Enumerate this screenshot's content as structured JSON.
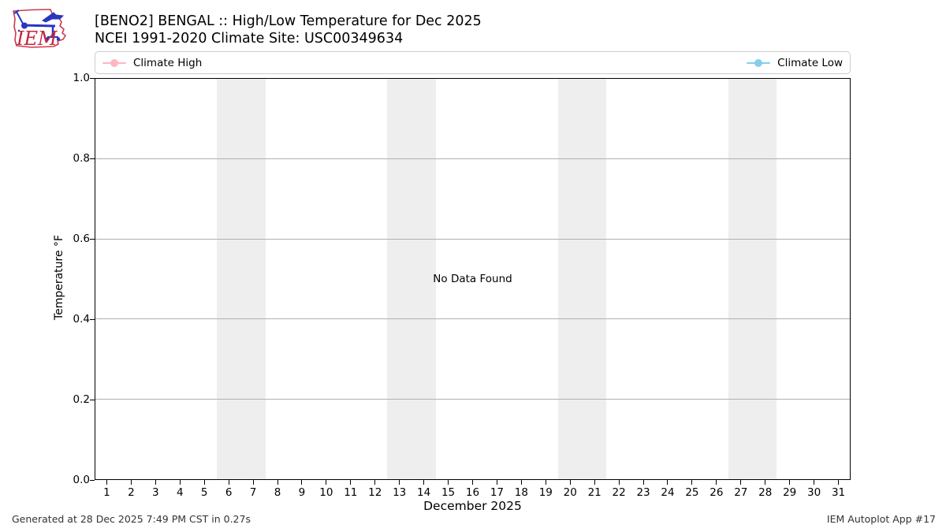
{
  "logo": {
    "text": "IEM"
  },
  "header": {
    "title": "[BENO2] BENGAL :: High/Low Temperature for Dec 2025",
    "subtitle": "NCEI 1991-2020 Climate Site: USC00349634"
  },
  "legend": {
    "high": {
      "label": "Climate High",
      "color": "#ffb6c1"
    },
    "low": {
      "label": "Climate Low",
      "color": "#87ceeb"
    }
  },
  "chart_data": {
    "type": "line",
    "title": "[BENO2] BENGAL :: High/Low Temperature for Dec 2025",
    "subtitle": "NCEI 1991-2020 Climate Site: USC00349634",
    "xlabel": "December 2025",
    "ylabel": "Temperature °F",
    "no_data_text": "No Data Found",
    "xlim": [
      0.5,
      31.5
    ],
    "ylim": [
      0.0,
      1.0
    ],
    "xticks": [
      1,
      2,
      3,
      4,
      5,
      6,
      7,
      8,
      9,
      10,
      11,
      12,
      13,
      14,
      15,
      16,
      17,
      18,
      19,
      20,
      21,
      22,
      23,
      24,
      25,
      26,
      27,
      28,
      29,
      30,
      31
    ],
    "yticks": [
      0.0,
      0.2,
      0.4,
      0.6,
      0.8,
      1.0
    ],
    "ytick_labels": [
      "0.0",
      "0.2",
      "0.4",
      "0.6",
      "0.8",
      "1.0"
    ],
    "grid": true,
    "grid_color": "#b0b0b0",
    "weekend_bands": [
      [
        5.5,
        7.5
      ],
      [
        12.5,
        14.5
      ],
      [
        19.5,
        21.5
      ],
      [
        26.5,
        28.5
      ]
    ],
    "band_color": "#eeeeee",
    "legend_position": "top",
    "series": [
      {
        "name": "Climate High",
        "color": "#ffb6c1",
        "values": []
      },
      {
        "name": "Climate Low",
        "color": "#87ceeb",
        "values": []
      }
    ]
  },
  "footer": {
    "left": "Generated at 28 Dec 2025 7:49 PM CST in 0.27s",
    "right": "IEM Autoplot App #17"
  }
}
